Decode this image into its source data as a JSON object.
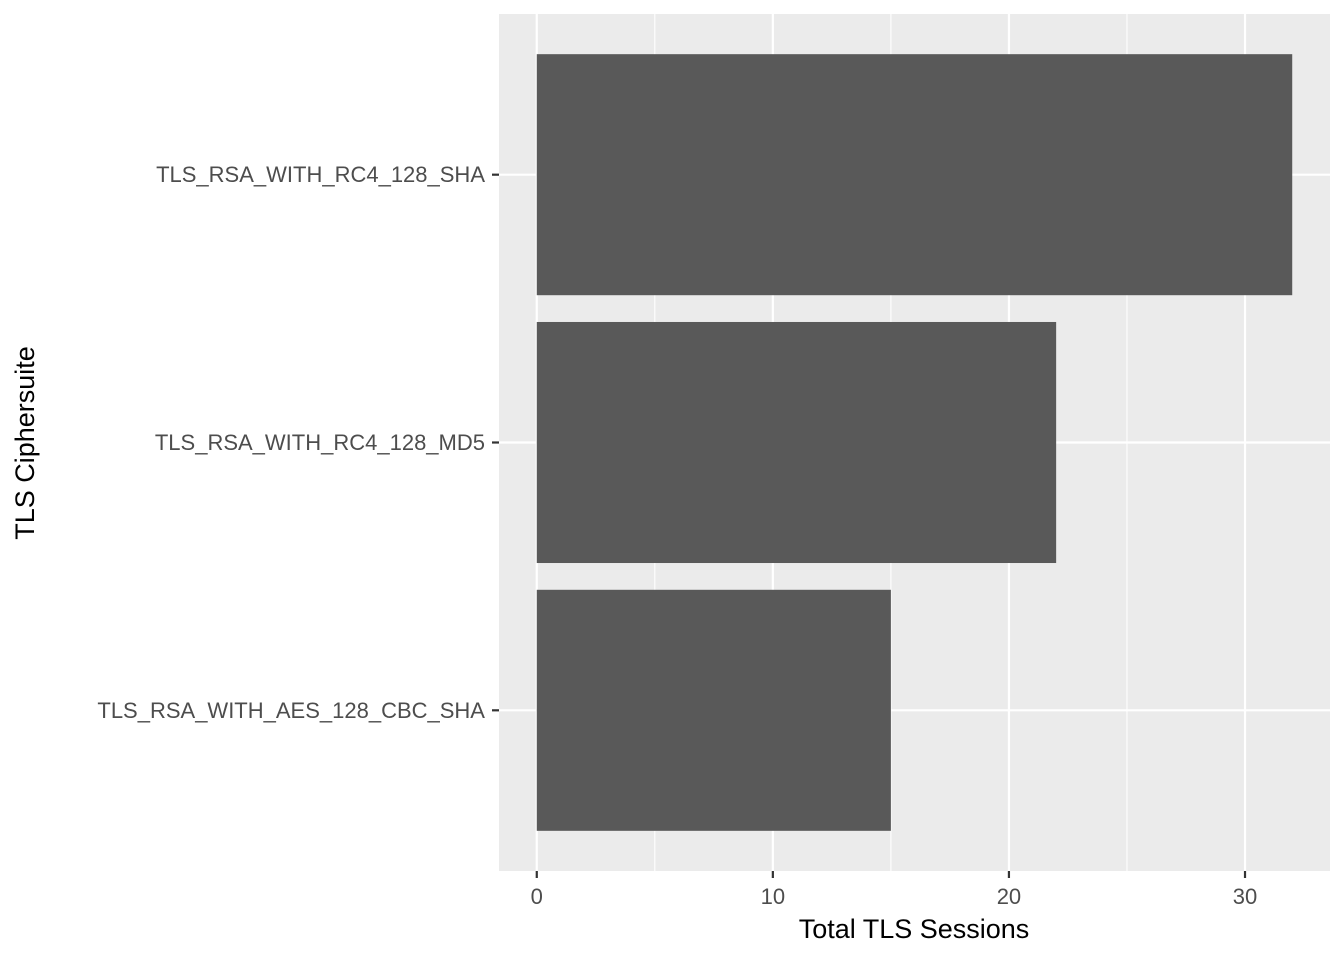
{
  "chart_data": {
    "type": "bar",
    "orientation": "horizontal",
    "categories": [
      "TLS_RSA_WITH_RC4_128_SHA",
      "TLS_RSA_WITH_RC4_128_MD5",
      "TLS_RSA_WITH_AES_128_CBC_SHA"
    ],
    "values": [
      32,
      22,
      15
    ],
    "title": "",
    "xlabel": "Total TLS Sessions",
    "ylabel": "TLS Ciphersuite",
    "xlim": [
      -1.6,
      33.6
    ],
    "x_ticks": [
      0,
      10,
      20,
      30
    ],
    "x_tick_labels": [
      "0",
      "10",
      "20",
      "30"
    ],
    "x_minor_ticks": [
      5,
      15,
      25
    ],
    "grid": true,
    "legend": "none",
    "colors": {
      "bar": "#595959",
      "panel_background": "#ebebeb",
      "grid_line": "#ffffff",
      "tick_text": "#4d4d4d",
      "title_text": "#000000"
    }
  }
}
